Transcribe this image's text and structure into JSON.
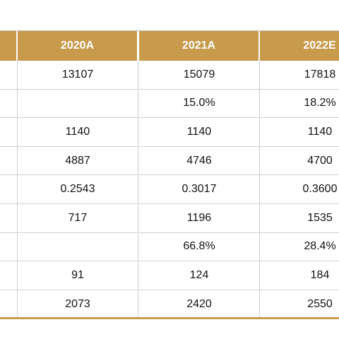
{
  "table": {
    "header": [
      "2020A",
      "2021A",
      "2022E"
    ],
    "rows": [
      [
        "13107",
        "15079",
        "17818"
      ],
      [
        null,
        "15.0%",
        "18.2%"
      ],
      [
        "1140",
        "1140",
        "1140"
      ],
      [
        "4887",
        "4746",
        "4700"
      ],
      [
        "0.2543",
        "0.3017",
        "0.3600"
      ],
      [
        "717",
        "1196",
        "1535"
      ],
      [
        null,
        "66.8%",
        "28.4%"
      ],
      [
        "91",
        "124",
        "184"
      ],
      [
        "2073",
        "2420",
        "2550"
      ]
    ]
  }
}
